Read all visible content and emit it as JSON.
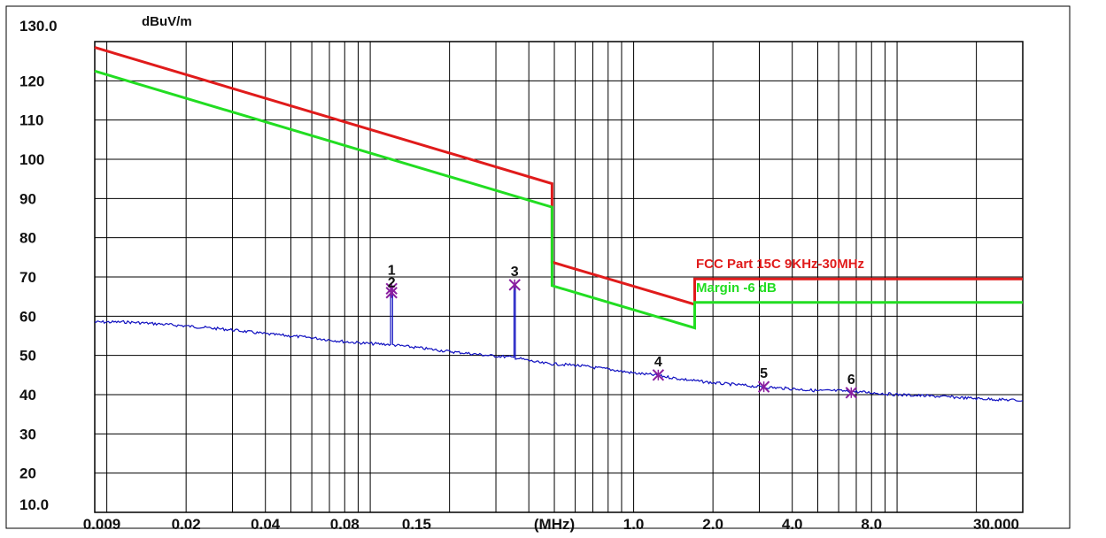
{
  "chart_data": {
    "type": "line",
    "y_unit": "dBuV/m",
    "x_unit": "(MHz)",
    "xscale": "log",
    "xlim": [
      0.009,
      30.0
    ],
    "ylim": [
      10.0,
      130.0
    ],
    "y_ticks": [
      "130.0",
      "120",
      "110",
      "100",
      "90",
      "80",
      "70",
      "60",
      "50",
      "40",
      "30",
      "20",
      "10.0"
    ],
    "x_tick_labels": [
      {
        "value": 0.009,
        "label": "0.009"
      },
      {
        "value": 0.02,
        "label": "0.02"
      },
      {
        "value": 0.04,
        "label": "0.04"
      },
      {
        "value": 0.08,
        "label": "0.08"
      },
      {
        "value": 0.15,
        "label": "0.15"
      },
      {
        "value": 0.5,
        "label": "(MHz)"
      },
      {
        "value": 1.0,
        "label": "1.0"
      },
      {
        "value": 2.0,
        "label": "2.0"
      },
      {
        "value": 4.0,
        "label": "4.0"
      },
      {
        "value": 8.0,
        "label": "8.0"
      },
      {
        "value": 30.0,
        "label": "30.000"
      }
    ],
    "grid": true,
    "series": [
      {
        "name": "FCC Part 15C 9KHz-30MHz",
        "color": "#e01b1b",
        "points": [
          [
            0.009,
            128.5
          ],
          [
            0.49,
            93.8
          ],
          [
            0.49,
            73.8
          ],
          [
            1.705,
            63.0
          ],
          [
            1.705,
            69.5
          ],
          [
            30.0,
            69.5
          ]
        ]
      },
      {
        "name": "Margin -6 dB",
        "color": "#22dd22",
        "points": [
          [
            0.009,
            122.5
          ],
          [
            0.49,
            87.8
          ],
          [
            0.49,
            67.8
          ],
          [
            1.705,
            57.0
          ],
          [
            1.705,
            63.5
          ],
          [
            30.0,
            63.5
          ]
        ]
      },
      {
        "name": "",
        "color": "#1010c0",
        "points": [
          [
            0.009,
            58.5
          ],
          [
            0.012,
            58.5
          ],
          [
            0.016,
            58.0
          ],
          [
            0.02,
            57.5
          ],
          [
            0.03,
            56.5
          ],
          [
            0.04,
            55.5
          ],
          [
            0.06,
            54.5
          ],
          [
            0.08,
            53.5
          ],
          [
            0.1,
            53.0
          ],
          [
            0.1195,
            52.8
          ],
          [
            0.1195,
            66.0
          ],
          [
            0.1215,
            66.0
          ],
          [
            0.1215,
            52.7
          ],
          [
            0.15,
            52.0
          ],
          [
            0.2,
            51.0
          ],
          [
            0.28,
            50.0
          ],
          [
            0.3515,
            49.5
          ],
          [
            0.3515,
            68.0
          ],
          [
            0.3555,
            68.0
          ],
          [
            0.3555,
            49.4
          ],
          [
            0.45,
            48.0
          ],
          [
            0.6,
            47.5
          ],
          [
            0.8,
            46.5
          ],
          [
            1.0,
            45.5
          ],
          [
            1.2,
            45.0
          ],
          [
            1.5,
            44.0
          ],
          [
            2.0,
            43.0
          ],
          [
            2.5,
            42.5
          ],
          [
            3.0,
            42.0
          ],
          [
            4.0,
            41.5
          ],
          [
            5.0,
            41.0
          ],
          [
            6.0,
            41.0
          ],
          [
            8.0,
            40.5
          ],
          [
            10.0,
            40.0
          ],
          [
            15.0,
            39.5
          ],
          [
            20.0,
            39.0
          ],
          [
            30.0,
            38.5
          ]
        ]
      }
    ],
    "markers": [
      {
        "label": "1",
        "x": 0.1205,
        "y": 67.0
      },
      {
        "label": "2",
        "x": 0.1205,
        "y": 66.0
      },
      {
        "label": "3",
        "x": 0.3535,
        "y": 68.0
      },
      {
        "label": "4",
        "x": 1.24,
        "y": 45.0
      },
      {
        "label": "5",
        "x": 3.12,
        "y": 42.0
      },
      {
        "label": "6",
        "x": 6.7,
        "y": 40.5
      }
    ]
  },
  "colors": {
    "limit": "#e01b1b",
    "margin": "#22dd22",
    "trace": "#1010c0",
    "marker": "#8a1fa0",
    "grid": "#000000"
  }
}
